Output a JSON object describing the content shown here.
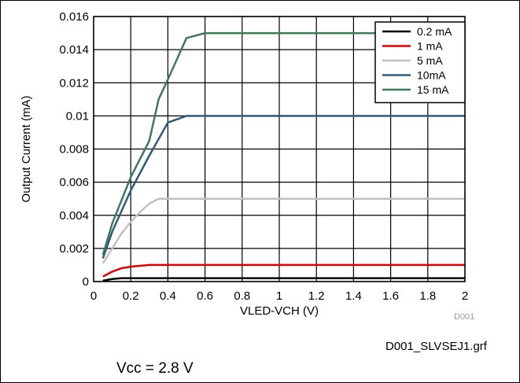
{
  "chart_data": {
    "type": "line",
    "xlabel": "VLED-VCH (V)",
    "ylabel": "Output Current  (mA)",
    "xlim": [
      0,
      2
    ],
    "ylim": [
      0,
      0.016
    ],
    "xticks": [
      "0",
      "0.2",
      "0.4",
      "0.6",
      "0.8",
      "1",
      "1.2",
      "1.4",
      "1.6",
      "1.8",
      "2"
    ],
    "yticks": [
      "0",
      "0.002",
      "0.004",
      "0.006",
      "0.008",
      "0.01",
      "0.012",
      "0.014",
      "0.016"
    ],
    "grid": true,
    "legend_position": "top-right",
    "series": [
      {
        "name": "0.2 mA",
        "color": "#000000",
        "x": [
          0.05,
          0.1,
          0.15,
          0.2,
          2.0
        ],
        "y": [
          5e-05,
          0.00015,
          0.0002,
          0.0002,
          0.0002
        ]
      },
      {
        "name": "1 mA",
        "color": "#e00000",
        "x": [
          0.05,
          0.1,
          0.15,
          0.2,
          0.25,
          0.3,
          2.0
        ],
        "y": [
          0.0003,
          0.0006,
          0.0008,
          0.0009,
          0.00095,
          0.001,
          0.001
        ]
      },
      {
        "name": "5 mA",
        "color": "#c0c0c0",
        "x": [
          0.05,
          0.1,
          0.15,
          0.2,
          0.25,
          0.3,
          0.35,
          2.0
        ],
        "y": [
          0.0011,
          0.002,
          0.0029,
          0.0036,
          0.0042,
          0.0047,
          0.005,
          0.005
        ]
      },
      {
        "name": "10mA",
        "color": "#2e5b7c",
        "x": [
          0.05,
          0.1,
          0.2,
          0.3,
          0.4,
          0.5,
          2.0
        ],
        "y": [
          0.0014,
          0.003,
          0.0055,
          0.0076,
          0.0096,
          0.01,
          0.01
        ]
      },
      {
        "name": "15 mA",
        "color": "#3b7a5a",
        "x": [
          0.05,
          0.1,
          0.2,
          0.3,
          0.35,
          0.4,
          0.5,
          0.6,
          2.0
        ],
        "y": [
          0.0016,
          0.0035,
          0.0063,
          0.0085,
          0.011,
          0.0122,
          0.0147,
          0.015,
          0.015
        ]
      }
    ]
  },
  "notes": {
    "code": "D001",
    "file": "D001_SLVSEJ1.grf",
    "condition": "Vcc = 2.8 V"
  }
}
